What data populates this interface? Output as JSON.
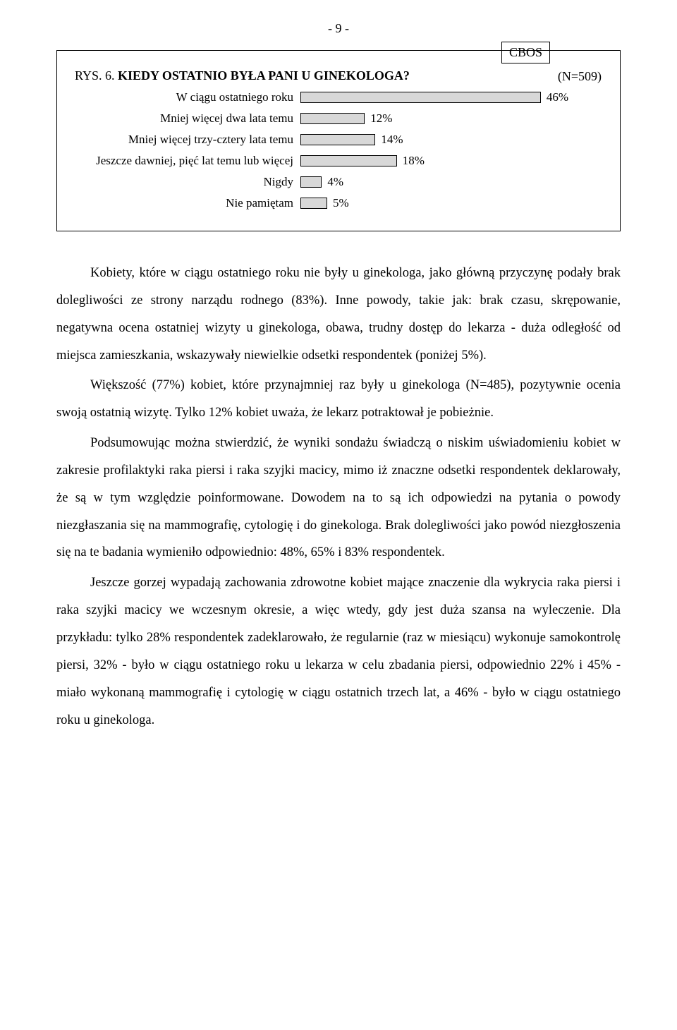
{
  "page_number": "- 9 -",
  "cbos_label": "CBOS",
  "chart": {
    "title_prefix": "RYS. 6.",
    "title_rest": "KIEDY OSTATNIO BYŁA PANI U GINEKOLOGA?",
    "n_label": "(N=509)",
    "bar_fill": "#d8d8d8",
    "bar_border": "#000000",
    "max_value": 50,
    "rows": [
      {
        "label": "W ciągu ostatniego roku",
        "value": 46,
        "text": "46%"
      },
      {
        "label": "Mniej więcej dwa lata temu",
        "value": 12,
        "text": "12%"
      },
      {
        "label": "Mniej więcej trzy-cztery lata temu",
        "value": 14,
        "text": "14%"
      },
      {
        "label": "Jeszcze dawniej, pięć lat temu lub więcej",
        "value": 18,
        "text": "18%"
      },
      {
        "label": "Nigdy",
        "value": 4,
        "text": "4%"
      },
      {
        "label": "Nie pamiętam",
        "value": 5,
        "text": "5%"
      }
    ]
  },
  "paragraphs": [
    "Kobiety, które w ciągu ostatniego roku nie były u ginekologa, jako główną przyczynę podały brak dolegliwości ze strony narządu rodnego (83%). Inne powody, takie jak: brak czasu, skrępowanie, negatywna ocena ostatniej wizyty u ginekologa, obawa, trudny dostęp do lekarza - duża odległość od miejsca zamieszkania, wskazywały niewielkie odsetki respondentek (poniżej 5%).",
    "Większość (77%) kobiet, które przynajmniej raz były u ginekologa (N=485), pozytywnie ocenia swoją ostatnią wizytę. Tylko 12% kobiet uważa, że lekarz potraktował je pobieżnie.",
    "Podsumowując można stwierdzić, że wyniki sondażu świadczą o niskim uświadomieniu kobiet w zakresie profilaktyki raka piersi i raka szyjki macicy, mimo iż znaczne odsetki respondentek deklarowały, że są w tym względzie poinformowane. Dowodem na to są ich odpowiedzi na pytania o powody niezgłaszania się na mammografię, cytologię i do ginekologa. Brak dolegliwości jako powód niezgłoszenia się na te badania wymieniło odpowiednio: 48%, 65% i 83% respondentek.",
    "Jeszcze gorzej wypadają zachowania zdrowotne kobiet mające znaczenie dla wykrycia raka piersi i raka szyjki macicy we wczesnym okresie, a więc wtedy, gdy jest duża szansa na wyleczenie. Dla przykładu: tylko 28% respondentek zadeklarowało, że regularnie (raz w miesiącu) wykonuje samokontrolę piersi, 32% - było w ciągu ostatniego roku u lekarza w celu zbadania piersi, odpowiednio 22% i 45% - miało wykonaną mammografię i cytologię w ciągu ostatnich trzech lat, a 46% - było w ciągu ostatniego roku u ginekologa."
  ]
}
